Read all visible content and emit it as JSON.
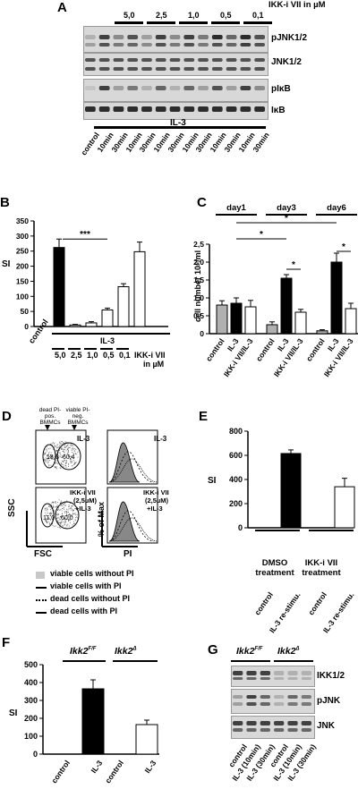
{
  "panel_letters": [
    "A",
    "B",
    "C",
    "D",
    "E",
    "F",
    "G"
  ],
  "panelA": {
    "inhibitor_label": "IKK-i VII in µM",
    "concentrations": [
      "5,0",
      "2,5",
      "1,0",
      "0,5",
      "0,1"
    ],
    "blots": [
      "pJNK1/2",
      "JNK1/2",
      "pIκB",
      "IκB"
    ],
    "treatment": "IL-3",
    "lanes": [
      "control",
      "10min",
      "30min",
      "10min",
      "30min",
      "10min",
      "30min",
      "10min",
      "30min",
      "10min",
      "30min",
      "10min",
      "30min"
    ]
  },
  "panelB": {
    "ylabel": "SI",
    "significance": "***",
    "x_group_label": "IL-3",
    "x_control_label": "control",
    "inhibitor_label": "IKK-i VII",
    "inhibitor_unit": "in µM",
    "concentrations": [
      "5,0",
      "2,5",
      "1,0",
      "0,5",
      "0,1"
    ]
  },
  "panelC": {
    "ylabel": "cell number 10⁶/ml",
    "days": [
      "day1",
      "day3",
      "day6"
    ],
    "sig": "*",
    "xticks": [
      "control",
      "IL-3",
      "IKK-i VII/IL-3",
      "control",
      "IL-3",
      "IKK-i VII/IL-3",
      "control",
      "IL-3",
      "IKK-i VII/IL-3"
    ]
  },
  "panelD": {
    "gate_dead": "dead PI-pos. BMMCs",
    "gate_viable": "viable PI-neg. BMMCs",
    "plot1_label": "IL-3",
    "plot1_gate_left": "18,6",
    "plot1_gate_right": "60,4",
    "plot2_label_line1": "IKK-i VII",
    "plot2_label_line2": "(2,5µM)",
    "plot2_label_line3": "+IL-3",
    "plot2_gate_left": "11,0",
    "plot2_gate_right": "60,0",
    "hist1_label": "IL-3",
    "hist2_label_line1": "IKK-i VII",
    "hist2_label_line2": "(2,5µM)",
    "hist2_label_line3": "+IL-3",
    "axis_ssc": "SSC",
    "axis_fsc": "FSC",
    "axis_max": "% of Max",
    "axis_pi": "PI",
    "legend": [
      {
        "text": "viable cells without PI",
        "style": "grey-fill"
      },
      {
        "text": "viable cells with PI",
        "style": "solid"
      },
      {
        "text": "dead cells without PI",
        "style": "dotted"
      },
      {
        "text": "dead cells with PI",
        "style": "dashed"
      }
    ]
  },
  "panelE": {
    "ylabel": "SI",
    "groups": [
      "DMSO treatment",
      "IKK-i VII treatment"
    ],
    "xticks": [
      "control",
      "IL-3 re-stimu.",
      "control",
      "IL-3 re-stimu."
    ]
  },
  "panelF": {
    "ylabel": "SI",
    "genotypes": [
      "Ikk2F/F",
      "Ikk2Δ"
    ],
    "xticks": [
      "control",
      "IL-3",
      "control",
      "IL-3"
    ]
  },
  "panelG": {
    "genotypes": [
      "Ikk2F/F",
      "Ikk2Δ"
    ],
    "blots": [
      "IKK1/2",
      "pJNK",
      "JNK"
    ],
    "lanes": [
      "control",
      "IL-3 (10min)",
      "IL-3 (30min)",
      "control",
      "IL-3 (10min)",
      "IL-3 (30min)"
    ]
  },
  "chart_data": [
    {
      "id": "B",
      "type": "bar",
      "categories": [
        "control",
        "IL-3",
        "5,0",
        "2,5",
        "1,0",
        "0,5",
        "0,1"
      ],
      "values": [
        0,
        262,
        5,
        12,
        55,
        132,
        248
      ],
      "errors": [
        0,
        28,
        2,
        4,
        6,
        10,
        32
      ],
      "fills": [
        "#000000",
        "#000000",
        "#ffffff",
        "#ffffff",
        "#ffffff",
        "#ffffff",
        "#ffffff"
      ],
      "ylabel": "SI",
      "ylim": [
        0,
        350
      ],
      "yticks": [
        0,
        50,
        100,
        150,
        200,
        250,
        300,
        350
      ]
    },
    {
      "id": "C",
      "type": "bar",
      "categories": [
        "control",
        "IL-3",
        "IKK-i VII/IL-3",
        "control",
        "IL-3",
        "IKK-i VII/IL-3",
        "control",
        "IL-3",
        "IKK-i VII/IL-3"
      ],
      "values": [
        0.8,
        0.85,
        0.75,
        0.25,
        1.55,
        0.6,
        0.08,
        2.0,
        0.7
      ],
      "errors": [
        0.12,
        0.15,
        0.18,
        0.08,
        0.1,
        0.08,
        0.03,
        0.25,
        0.15
      ],
      "fills": [
        "#b0b0b0",
        "#000000",
        "#ffffff",
        "#b0b0b0",
        "#000000",
        "#ffffff",
        "#b0b0b0",
        "#000000",
        "#ffffff"
      ],
      "ylabel": "cell number 10⁶/ml",
      "ylim": [
        0,
        2.5
      ],
      "yticks": [
        0,
        0.5,
        1.0,
        1.5,
        2.0,
        2.5
      ],
      "ytick_labels": [
        "0",
        "0,5",
        "1,0",
        "1,5",
        "2,0",
        "2,5"
      ]
    },
    {
      "id": "E",
      "type": "bar",
      "categories": [
        "control",
        "IL-3 re-stimu.",
        "control",
        "IL-3 re-stimu."
      ],
      "values": [
        0,
        615,
        0,
        340
      ],
      "errors": [
        0,
        30,
        0,
        70
      ],
      "fills": [
        "#000000",
        "#000000",
        "#ffffff",
        "#ffffff"
      ],
      "ylabel": "SI",
      "ylim": [
        0,
        800
      ],
      "yticks": [
        0,
        200,
        400,
        600,
        800
      ]
    },
    {
      "id": "F",
      "type": "bar",
      "categories": [
        "control",
        "IL-3",
        "control",
        "IL-3"
      ],
      "values": [
        0,
        365,
        0,
        165
      ],
      "errors": [
        0,
        50,
        0,
        25
      ],
      "fills": [
        "#000000",
        "#000000",
        "#ffffff",
        "#ffffff"
      ],
      "ylabel": "SI",
      "ylim": [
        0,
        500
      ],
      "yticks": [
        0,
        100,
        200,
        300,
        400,
        500
      ]
    }
  ]
}
